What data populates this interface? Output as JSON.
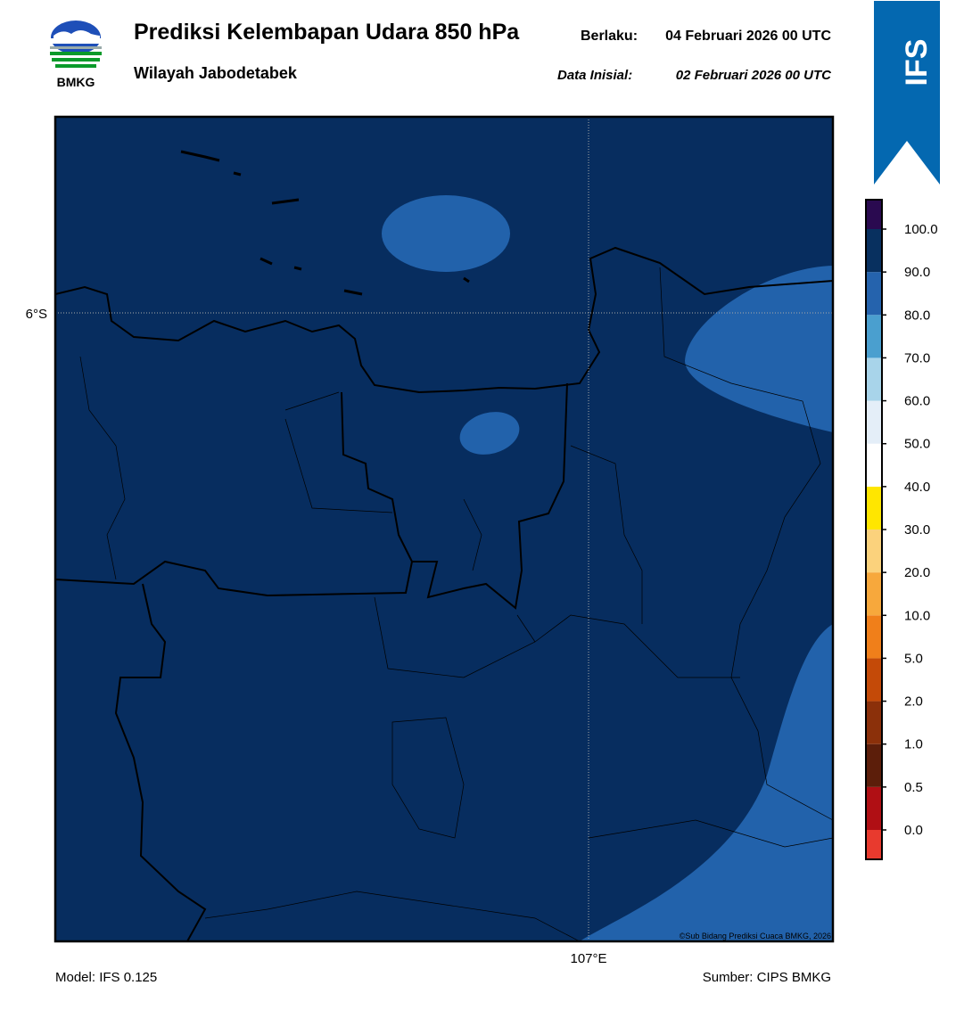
{
  "header": {
    "logo_text": "BMKG",
    "title": "Prediksi Kelembapan Udara 850 hPa",
    "valid_label": "Berlaku:",
    "valid_date": "04 Februari 2026 00 UTC",
    "subtitle": "Wilayah Jabodetabek",
    "init_label": "Data Inisial:",
    "init_date": "02 Februari 2026 00 UTC"
  },
  "badge": "IFS",
  "map": {
    "lat_label": "6°S",
    "lon_label": "107°E",
    "credit": "©Sub Bidang Prediksi Cuaca BMKG, 2026"
  },
  "colorbar": {
    "labels": [
      "0.0",
      "0.5",
      "1.0",
      "2.0",
      "5.0",
      "10.0",
      "20.0",
      "30.0",
      "40.0",
      "50.0",
      "60.0",
      "70.0",
      "80.0",
      "90.0",
      "100.0"
    ],
    "colors": [
      "#e83a2e",
      "#b00f14",
      "#5c1e0a",
      "#8b300a",
      "#c44a08",
      "#f07f1a",
      "#f7a83c",
      "#fbd27c",
      "#ffe600",
      "#ffffff",
      "#e4eef8",
      "#a8d4ea",
      "#4a9fcf",
      "#2563ad",
      "#08305f",
      "#2a0a50"
    ]
  },
  "footer": {
    "model": "Model: IFS 0.125",
    "source": "Sumber: CIPS BMKG"
  }
}
